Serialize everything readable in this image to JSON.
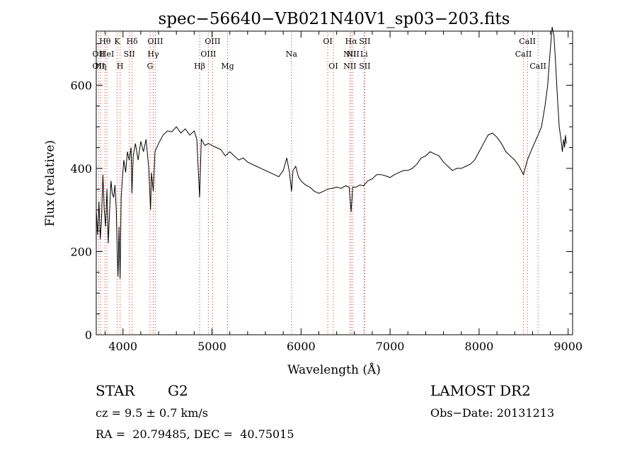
{
  "chart_data": {
    "type": "line",
    "title": "spec−56640−VB021N40V1_sp03−203.fits",
    "xlabel": "Wavelength (Å)",
    "ylabel": "Flux (relative)",
    "xlim": [
      3700,
      9050
    ],
    "ylim": [
      0,
      730
    ],
    "xticks": [
      4000,
      5000,
      6000,
      7000,
      8000,
      9000
    ],
    "yticks": [
      0,
      200,
      400,
      600
    ],
    "grid": false,
    "line_color": "#000000",
    "marker_color": "#d03030",
    "series": [
      {
        "values": [
          [
            3700,
            300
          ],
          [
            3715,
            240
          ],
          [
            3730,
            320
          ],
          [
            3745,
            230
          ],
          [
            3760,
            280
          ],
          [
            3775,
            385
          ],
          [
            3790,
            300
          ],
          [
            3805,
            260
          ],
          [
            3820,
            350
          ],
          [
            3835,
            220
          ],
          [
            3850,
            300
          ],
          [
            3865,
            370
          ],
          [
            3880,
            340
          ],
          [
            3895,
            330
          ],
          [
            3910,
            360
          ],
          [
            3925,
            300
          ],
          [
            3935,
            200
          ],
          [
            3945,
            140
          ],
          [
            3955,
            260
          ],
          [
            3968,
            135
          ],
          [
            3980,
            330
          ],
          [
            3995,
            380
          ],
          [
            4010,
            420
          ],
          [
            4030,
            390
          ],
          [
            4050,
            440
          ],
          [
            4070,
            420
          ],
          [
            4090,
            450
          ],
          [
            4101,
            340
          ],
          [
            4115,
            430
          ],
          [
            4140,
            460
          ],
          [
            4170,
            420
          ],
          [
            4200,
            465
          ],
          [
            4230,
            440
          ],
          [
            4260,
            470
          ],
          [
            4290,
            400
          ],
          [
            4310,
            300
          ],
          [
            4320,
            390
          ],
          [
            4340,
            345
          ],
          [
            4360,
            440
          ],
          [
            4400,
            460
          ],
          [
            4450,
            480
          ],
          [
            4500,
            490
          ],
          [
            4550,
            488
          ],
          [
            4600,
            500
          ],
          [
            4650,
            485
          ],
          [
            4700,
            495
          ],
          [
            4750,
            480
          ],
          [
            4800,
            490
          ],
          [
            4830,
            470
          ],
          [
            4861,
            330
          ],
          [
            4880,
            470
          ],
          [
            4920,
            455
          ],
          [
            4960,
            460
          ],
          [
            5000,
            455
          ],
          [
            5050,
            450
          ],
          [
            5100,
            445
          ],
          [
            5150,
            430
          ],
          [
            5200,
            440
          ],
          [
            5250,
            430
          ],
          [
            5300,
            420
          ],
          [
            5350,
            425
          ],
          [
            5400,
            415
          ],
          [
            5450,
            410
          ],
          [
            5500,
            405
          ],
          [
            5550,
            400
          ],
          [
            5600,
            395
          ],
          [
            5650,
            390
          ],
          [
            5700,
            385
          ],
          [
            5750,
            380
          ],
          [
            5800,
            395
          ],
          [
            5840,
            425
          ],
          [
            5870,
            390
          ],
          [
            5893,
            345
          ],
          [
            5910,
            395
          ],
          [
            5940,
            405
          ],
          [
            5970,
            380
          ],
          [
            6000,
            370
          ],
          [
            6050,
            360
          ],
          [
            6100,
            355
          ],
          [
            6150,
            345
          ],
          [
            6200,
            340
          ],
          [
            6250,
            345
          ],
          [
            6300,
            350
          ],
          [
            6350,
            352
          ],
          [
            6400,
            355
          ],
          [
            6450,
            352
          ],
          [
            6500,
            358
          ],
          [
            6540,
            355
          ],
          [
            6563,
            295
          ],
          [
            6580,
            355
          ],
          [
            6620,
            355
          ],
          [
            6660,
            360
          ],
          [
            6700,
            358
          ],
          [
            6750,
            370
          ],
          [
            6800,
            375
          ],
          [
            6850,
            385
          ],
          [
            6900,
            385
          ],
          [
            6950,
            382
          ],
          [
            7000,
            378
          ],
          [
            7050,
            385
          ],
          [
            7100,
            390
          ],
          [
            7150,
            395
          ],
          [
            7200,
            395
          ],
          [
            7250,
            400
          ],
          [
            7300,
            410
          ],
          [
            7350,
            425
          ],
          [
            7400,
            430
          ],
          [
            7450,
            440
          ],
          [
            7500,
            435
          ],
          [
            7550,
            430
          ],
          [
            7600,
            415
          ],
          [
            7650,
            405
          ],
          [
            7700,
            395
          ],
          [
            7750,
            400
          ],
          [
            7800,
            400
          ],
          [
            7850,
            405
          ],
          [
            7900,
            410
          ],
          [
            7950,
            420
          ],
          [
            8000,
            440
          ],
          [
            8050,
            460
          ],
          [
            8100,
            480
          ],
          [
            8150,
            485
          ],
          [
            8200,
            475
          ],
          [
            8250,
            460
          ],
          [
            8300,
            440
          ],
          [
            8350,
            430
          ],
          [
            8400,
            420
          ],
          [
            8450,
            405
          ],
          [
            8498,
            385
          ],
          [
            8542,
            420
          ],
          [
            8580,
            440
          ],
          [
            8620,
            460
          ],
          [
            8662,
            480
          ],
          [
            8700,
            500
          ],
          [
            8740,
            550
          ],
          [
            8770,
            600
          ],
          [
            8790,
            660
          ],
          [
            8805,
            700
          ],
          [
            8820,
            740
          ],
          [
            8840,
            720
          ],
          [
            8860,
            650
          ],
          [
            8880,
            570
          ],
          [
            8900,
            500
          ],
          [
            8920,
            470
          ],
          [
            8935,
            440
          ],
          [
            8950,
            470
          ],
          [
            8960,
            450
          ],
          [
            8970,
            480
          ],
          [
            8980,
            460
          ]
        ]
      }
    ],
    "lines": [
      {
        "x": 3727,
        "rows": [
          2,
          3
        ],
        "labels": [
          "OII",
          "OII"
        ]
      },
      {
        "x": 3750,
        "rows": [
          3
        ],
        "labels": [
          "Hη"
        ]
      },
      {
        "x": 3798,
        "rows": [
          1
        ],
        "labels": [
          "Hθ"
        ]
      },
      {
        "x": 3820,
        "rows": [
          2
        ],
        "labels": [
          "HeI"
        ]
      },
      {
        "x": 3934,
        "rows": [
          1
        ],
        "labels": [
          "K"
        ]
      },
      {
        "x": 3968,
        "rows": [
          3
        ],
        "labels": [
          "H"
        ]
      },
      {
        "x": 4072,
        "rows": [
          2
        ],
        "labels": [
          "SII"
        ]
      },
      {
        "x": 4102,
        "rows": [
          1
        ],
        "labels": [
          "Hδ"
        ]
      },
      {
        "x": 4304,
        "rows": [
          3
        ],
        "labels": [
          "G"
        ]
      },
      {
        "x": 4340,
        "rows": [
          2
        ],
        "labels": [
          "Hγ"
        ]
      },
      {
        "x": 4363,
        "rows": [
          1
        ],
        "labels": [
          "OIII"
        ]
      },
      {
        "x": 4861,
        "rows": [
          3
        ],
        "labels": [
          "Hβ"
        ]
      },
      {
        "x": 4959,
        "rows": [
          2
        ],
        "labels": [
          "OIII"
        ]
      },
      {
        "x": 5007,
        "rows": [
          1
        ],
        "labels": [
          "OIII"
        ]
      },
      {
        "x": 5175,
        "rows": [
          3
        ],
        "labels": [
          "Mg"
        ]
      },
      {
        "x": 5893,
        "rows": [
          2
        ],
        "labels": [
          "Na"
        ]
      },
      {
        "x": 6300,
        "rows": [
          1
        ],
        "labels": [
          "OI"
        ]
      },
      {
        "x": 6363,
        "rows": [
          3
        ],
        "labels": [
          "OI"
        ]
      },
      {
        "x": 6548,
        "rows": [
          2,
          3
        ],
        "labels": [
          "NII",
          "NII"
        ]
      },
      {
        "x": 6563,
        "rows": [
          1
        ],
        "labels": [
          "Hα"
        ]
      },
      {
        "x": 6583,
        "rows": [
          2
        ],
        "labels": [
          "NII"
        ]
      },
      {
        "x": 6707,
        "rows": [
          2
        ],
        "labels": [
          "Li"
        ]
      },
      {
        "x": 6716,
        "rows": [
          1,
          3
        ],
        "labels": [
          "SII",
          "SII"
        ]
      },
      {
        "x": 8498,
        "rows": [
          2
        ],
        "labels": [
          "CaII"
        ]
      },
      {
        "x": 8542,
        "rows": [
          1
        ],
        "labels": [
          "CaII"
        ]
      },
      {
        "x": 8662,
        "rows": [
          3
        ],
        "labels": [
          "CaII"
        ]
      }
    ]
  },
  "footer": {
    "class_label": "STAR",
    "subclass": "G2",
    "survey": "LAMOST DR2",
    "redshift": "cz = 9.5 ± 0.7 km/s",
    "obs_date": "Obs−Date: 20131213",
    "coords": "RA =  20.79485, DEC =  40.75015"
  }
}
